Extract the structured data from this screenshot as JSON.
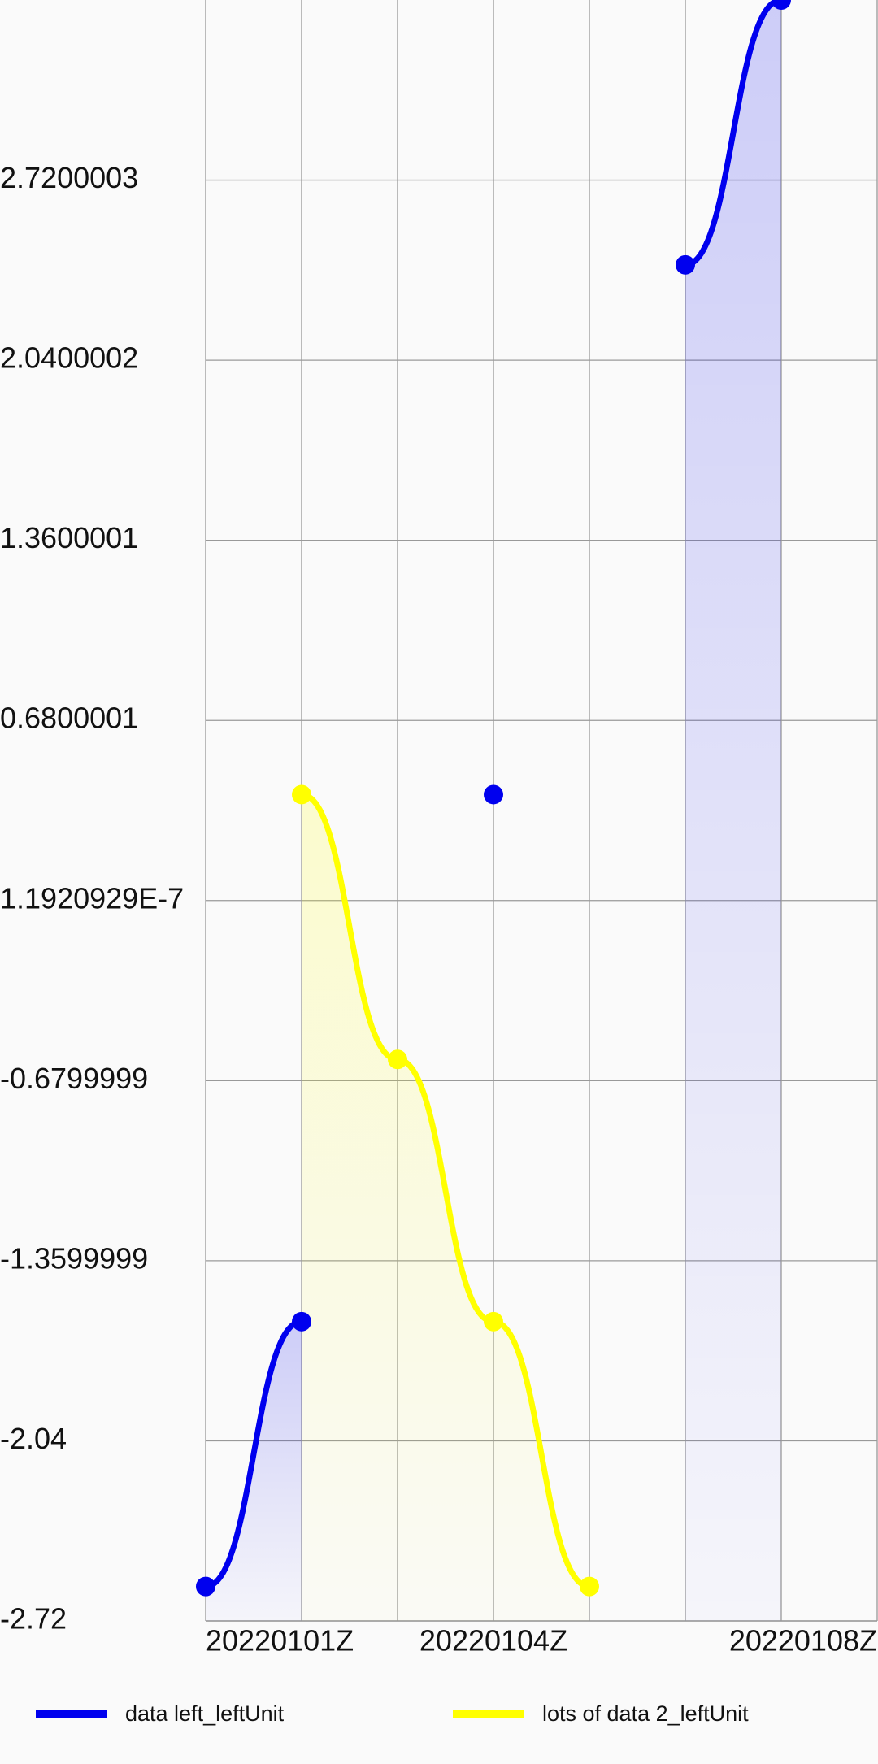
{
  "chart_data": {
    "type": "line",
    "categories": [
      "20220101Z",
      null,
      null,
      "20220104Z",
      null,
      null,
      null,
      "20220108Z"
    ],
    "series": [
      {
        "name": "data left_leftUnit",
        "color": "#0000ee",
        "values": [
          -2.59,
          -1.59,
          null,
          0.4,
          null,
          2.4,
          3.4,
          null
        ]
      },
      {
        "name": "lots of data 2_leftUnit",
        "color": "#ffff00",
        "values": [
          null,
          0.4,
          -0.6,
          -1.59,
          -2.59,
          null,
          null,
          null
        ]
      }
    ],
    "ylim": [
      -2.72,
      3.4
    ],
    "yticks": [
      -2.72,
      -2.04,
      -1.3599999,
      -0.6799999,
      {
        "value": 1.1920929e-07,
        "label": "1.1920929E-7"
      },
      0.6800001,
      1.3600001,
      2.0400002,
      2.7200003
    ],
    "grid": true,
    "fill": true,
    "smooth": true,
    "legend": "bottom"
  }
}
